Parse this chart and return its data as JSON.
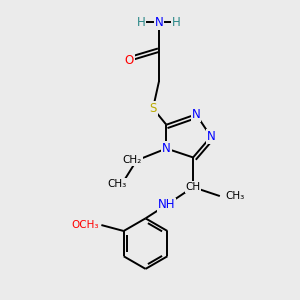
{
  "background_color": "#ebebeb",
  "atom_colors": {
    "C": "#000000",
    "N": "#0000ff",
    "O": "#ff0000",
    "S": "#bbaa00",
    "H_atom": "#2a8888"
  },
  "bond_color": "#000000",
  "bond_width": 1.4,
  "figsize": [
    3.0,
    3.0
  ],
  "dpi": 100,
  "xlim": [
    0,
    10
  ],
  "ylim": [
    0,
    10
  ]
}
